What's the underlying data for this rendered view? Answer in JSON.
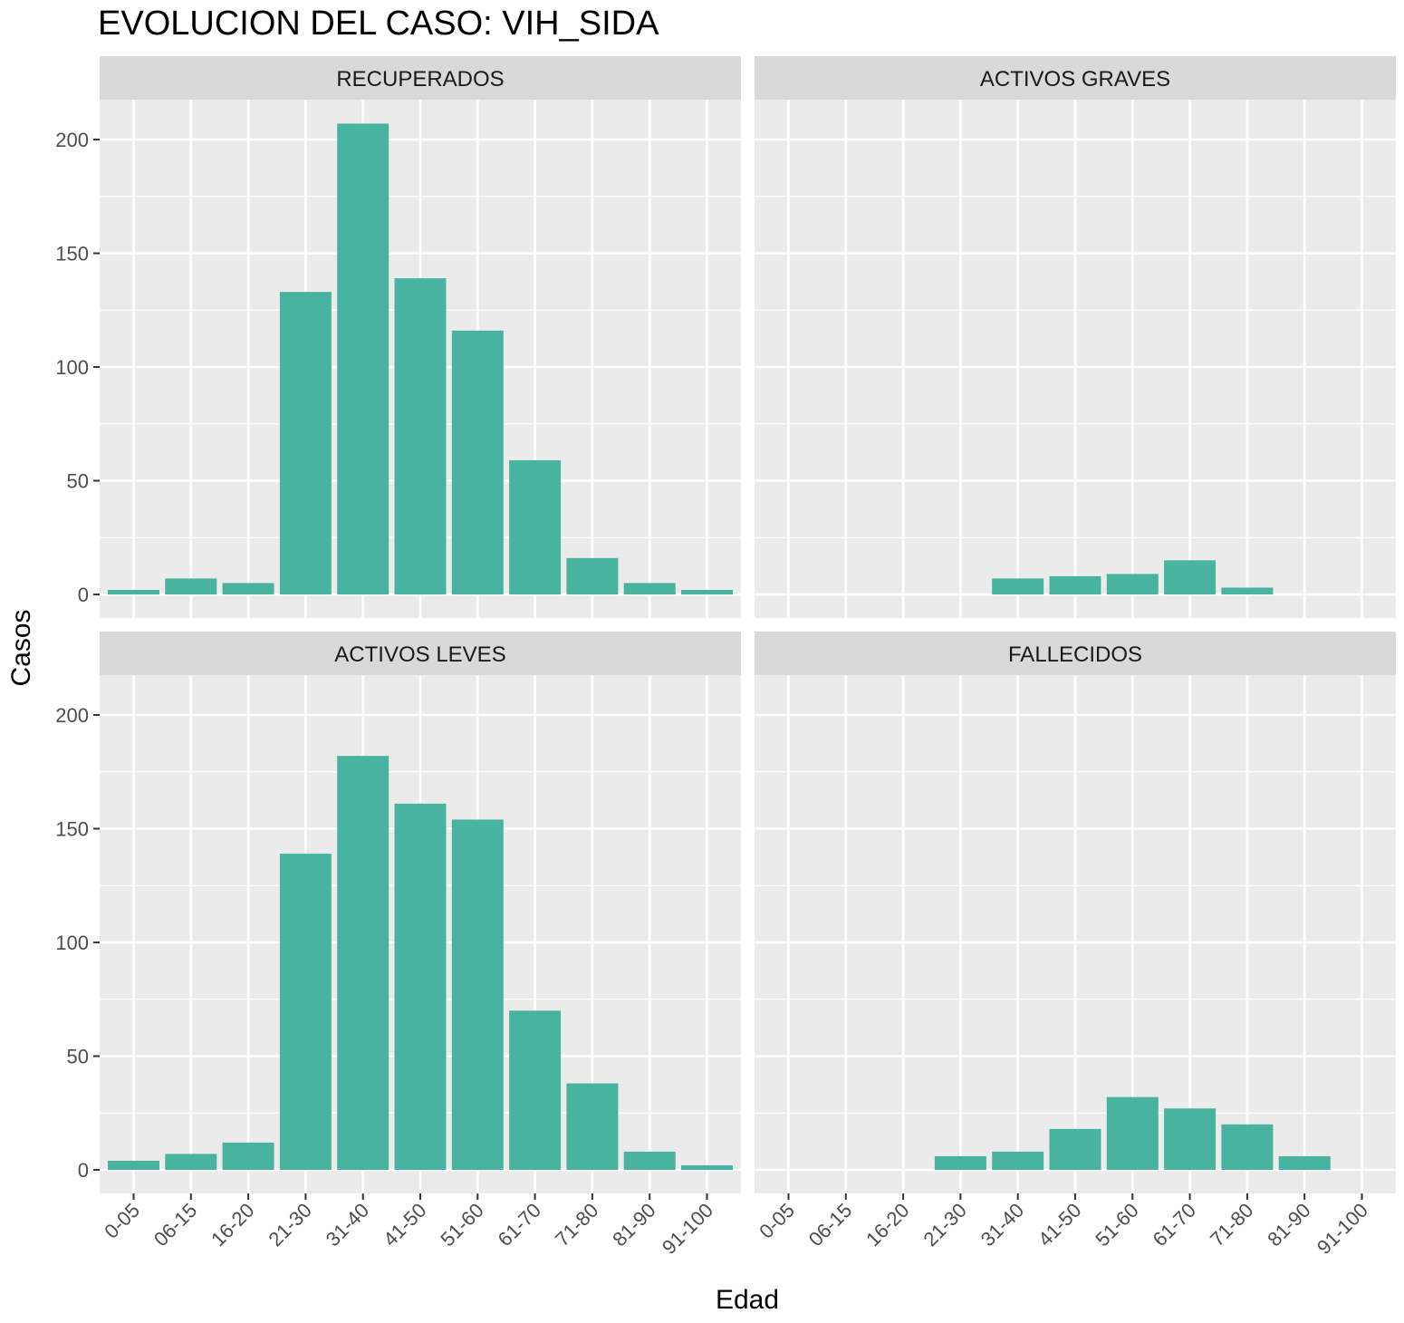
{
  "chart_data": {
    "type": "bar",
    "title": "EVOLUCION DEL CASO: VIH_SIDA",
    "xlabel": "Edad",
    "ylabel": "Casos",
    "categories": [
      "0-05",
      "06-15",
      "16-20",
      "21-30",
      "31-40",
      "41-50",
      "51-60",
      "61-70",
      "71-80",
      "81-90",
      "91-100"
    ],
    "ylim": [
      0,
      215
    ],
    "yticks": [
      0,
      50,
      100,
      150,
      200
    ],
    "facet_layout": "2x2",
    "bar_color": "#48B39E",
    "panel_background": "#EBEBEB",
    "strip_background": "#D9D9D9",
    "grid": true,
    "panels": [
      {
        "name": "RECUPERADOS",
        "values": [
          2,
          7,
          5,
          133,
          207,
          139,
          116,
          59,
          16,
          5,
          2
        ]
      },
      {
        "name": "ACTIVOS GRAVES",
        "values": [
          0,
          0,
          0,
          0,
          7,
          8,
          9,
          15,
          3,
          0,
          0
        ]
      },
      {
        "name": "ACTIVOS LEVES",
        "values": [
          4,
          7,
          12,
          139,
          182,
          161,
          154,
          70,
          38,
          8,
          2
        ]
      },
      {
        "name": "FALLECIDOS",
        "values": [
          0,
          0,
          0,
          6,
          8,
          18,
          32,
          27,
          20,
          6,
          0
        ]
      }
    ]
  }
}
